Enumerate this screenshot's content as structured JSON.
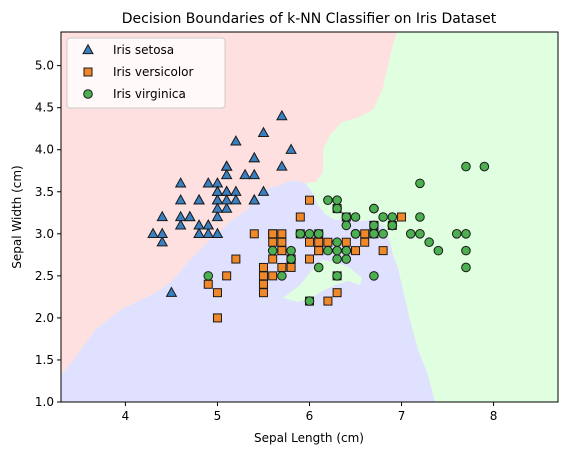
{
  "chart_data": {
    "type": "scatter",
    "title": "Decision Boundaries of k-NN Classifier on Iris Dataset",
    "xlabel": "Sepal Length (cm)",
    "ylabel": "Sepal Width (cm)",
    "xlim": [
      3.3,
      8.7
    ],
    "ylim": [
      1.0,
      5.4
    ],
    "xticks": [
      "4",
      "5",
      "6",
      "7",
      "8"
    ],
    "yticks": [
      "1.0",
      "1.5",
      "2.0",
      "2.5",
      "3.0",
      "3.5",
      "4.0",
      "4.5",
      "5.0"
    ],
    "grid": false,
    "legend_position": "top-left",
    "regions": [
      {
        "class": "Iris setosa",
        "color": "#ffe0e0"
      },
      {
        "class": "Iris versicolor",
        "color": "#e0e0ff"
      },
      {
        "class": "Iris virginica",
        "color": "#e0ffe0"
      }
    ],
    "series": [
      {
        "name": "Iris setosa",
        "marker": "triangle",
        "color": "#3a7fbf",
        "points": [
          [
            5.1,
            3.5
          ],
          [
            4.9,
            3.0
          ],
          [
            4.7,
            3.2
          ],
          [
            4.6,
            3.1
          ],
          [
            5.0,
            3.6
          ],
          [
            5.4,
            3.9
          ],
          [
            4.6,
            3.4
          ],
          [
            5.0,
            3.4
          ],
          [
            4.4,
            2.9
          ],
          [
            4.9,
            3.1
          ],
          [
            5.4,
            3.7
          ],
          [
            4.8,
            3.4
          ],
          [
            4.8,
            3.0
          ],
          [
            4.3,
            3.0
          ],
          [
            5.8,
            4.0
          ],
          [
            5.7,
            4.4
          ],
          [
            5.4,
            3.9
          ],
          [
            5.1,
            3.5
          ],
          [
            5.7,
            3.8
          ],
          [
            5.1,
            3.8
          ],
          [
            5.4,
            3.4
          ],
          [
            5.1,
            3.7
          ],
          [
            4.6,
            3.6
          ],
          [
            5.1,
            3.3
          ],
          [
            4.8,
            3.4
          ],
          [
            5.0,
            3.0
          ],
          [
            5.0,
            3.4
          ],
          [
            5.2,
            3.5
          ],
          [
            5.2,
            3.4
          ],
          [
            4.7,
            3.2
          ],
          [
            4.8,
            3.1
          ],
          [
            5.4,
            3.4
          ],
          [
            5.2,
            4.1
          ],
          [
            5.5,
            4.2
          ],
          [
            4.9,
            3.1
          ],
          [
            5.0,
            3.2
          ],
          [
            5.5,
            3.5
          ],
          [
            4.9,
            3.6
          ],
          [
            4.4,
            3.0
          ],
          [
            5.1,
            3.4
          ],
          [
            5.0,
            3.5
          ],
          [
            4.5,
            2.3
          ],
          [
            4.4,
            3.2
          ],
          [
            5.0,
            3.5
          ],
          [
            5.1,
            3.8
          ],
          [
            4.8,
            3.0
          ],
          [
            5.1,
            3.8
          ],
          [
            4.6,
            3.2
          ],
          [
            5.3,
            3.7
          ],
          [
            5.0,
            3.3
          ]
        ]
      },
      {
        "name": "Iris versicolor",
        "marker": "square",
        "color": "#f0882a",
        "points": [
          [
            7.0,
            3.2
          ],
          [
            6.4,
            3.2
          ],
          [
            6.9,
            3.1
          ],
          [
            5.5,
            2.3
          ],
          [
            6.5,
            2.8
          ],
          [
            5.7,
            2.8
          ],
          [
            6.3,
            3.3
          ],
          [
            4.9,
            2.4
          ],
          [
            6.6,
            2.9
          ],
          [
            5.2,
            2.7
          ],
          [
            5.0,
            2.0
          ],
          [
            5.9,
            3.0
          ],
          [
            6.0,
            2.2
          ],
          [
            6.1,
            2.9
          ],
          [
            5.6,
            2.9
          ],
          [
            6.7,
            3.1
          ],
          [
            5.6,
            3.0
          ],
          [
            5.8,
            2.7
          ],
          [
            6.2,
            2.2
          ],
          [
            5.6,
            2.5
          ],
          [
            5.9,
            3.2
          ],
          [
            6.1,
            2.8
          ],
          [
            6.3,
            2.5
          ],
          [
            6.1,
            2.8
          ],
          [
            6.4,
            2.9
          ],
          [
            6.6,
            3.0
          ],
          [
            6.8,
            2.8
          ],
          [
            6.7,
            3.0
          ],
          [
            6.0,
            2.9
          ],
          [
            5.7,
            2.6
          ],
          [
            5.5,
            2.4
          ],
          [
            5.5,
            2.4
          ],
          [
            5.8,
            2.7
          ],
          [
            6.0,
            2.7
          ],
          [
            5.4,
            3.0
          ],
          [
            6.0,
            3.4
          ],
          [
            6.7,
            3.1
          ],
          [
            6.3,
            2.3
          ],
          [
            5.6,
            3.0
          ],
          [
            5.5,
            2.5
          ],
          [
            5.5,
            2.6
          ],
          [
            6.1,
            3.0
          ],
          [
            5.8,
            2.6
          ],
          [
            5.0,
            2.3
          ],
          [
            5.6,
            2.7
          ],
          [
            5.7,
            3.0
          ],
          [
            5.7,
            2.9
          ],
          [
            6.2,
            2.9
          ],
          [
            5.1,
            2.5
          ],
          [
            5.7,
            2.8
          ]
        ]
      },
      {
        "name": "Iris virginica",
        "marker": "circle",
        "color": "#4caf50",
        "points": [
          [
            6.3,
            3.3
          ],
          [
            5.8,
            2.7
          ],
          [
            7.1,
            3.0
          ],
          [
            6.3,
            2.9
          ],
          [
            6.5,
            3.0
          ],
          [
            7.6,
            3.0
          ],
          [
            4.9,
            2.5
          ],
          [
            7.3,
            2.9
          ],
          [
            6.7,
            2.5
          ],
          [
            7.2,
            3.6
          ],
          [
            6.5,
            3.2
          ],
          [
            6.4,
            2.7
          ],
          [
            6.8,
            3.0
          ],
          [
            5.7,
            2.5
          ],
          [
            5.8,
            2.8
          ],
          [
            6.4,
            3.2
          ],
          [
            6.5,
            3.0
          ],
          [
            7.7,
            3.8
          ],
          [
            7.7,
            2.6
          ],
          [
            6.0,
            2.2
          ],
          [
            6.9,
            3.2
          ],
          [
            5.6,
            2.8
          ],
          [
            7.7,
            2.8
          ],
          [
            6.3,
            2.7
          ],
          [
            6.7,
            3.3
          ],
          [
            7.2,
            3.2
          ],
          [
            6.2,
            2.8
          ],
          [
            6.1,
            3.0
          ],
          [
            6.4,
            2.8
          ],
          [
            7.2,
            3.0
          ],
          [
            7.4,
            2.8
          ],
          [
            7.9,
            3.8
          ],
          [
            6.4,
            2.8
          ],
          [
            6.3,
            2.8
          ],
          [
            6.1,
            2.6
          ],
          [
            7.7,
            3.0
          ],
          [
            6.3,
            3.4
          ],
          [
            6.4,
            3.1
          ],
          [
            6.0,
            3.0
          ],
          [
            6.9,
            3.1
          ],
          [
            6.7,
            3.1
          ],
          [
            6.9,
            3.1
          ],
          [
            5.8,
            2.7
          ],
          [
            6.8,
            3.2
          ],
          [
            6.7,
            3.3
          ],
          [
            6.7,
            3.0
          ],
          [
            6.3,
            2.5
          ],
          [
            6.5,
            3.0
          ],
          [
            6.2,
            3.4
          ],
          [
            5.9,
            3.0
          ]
        ]
      }
    ]
  }
}
